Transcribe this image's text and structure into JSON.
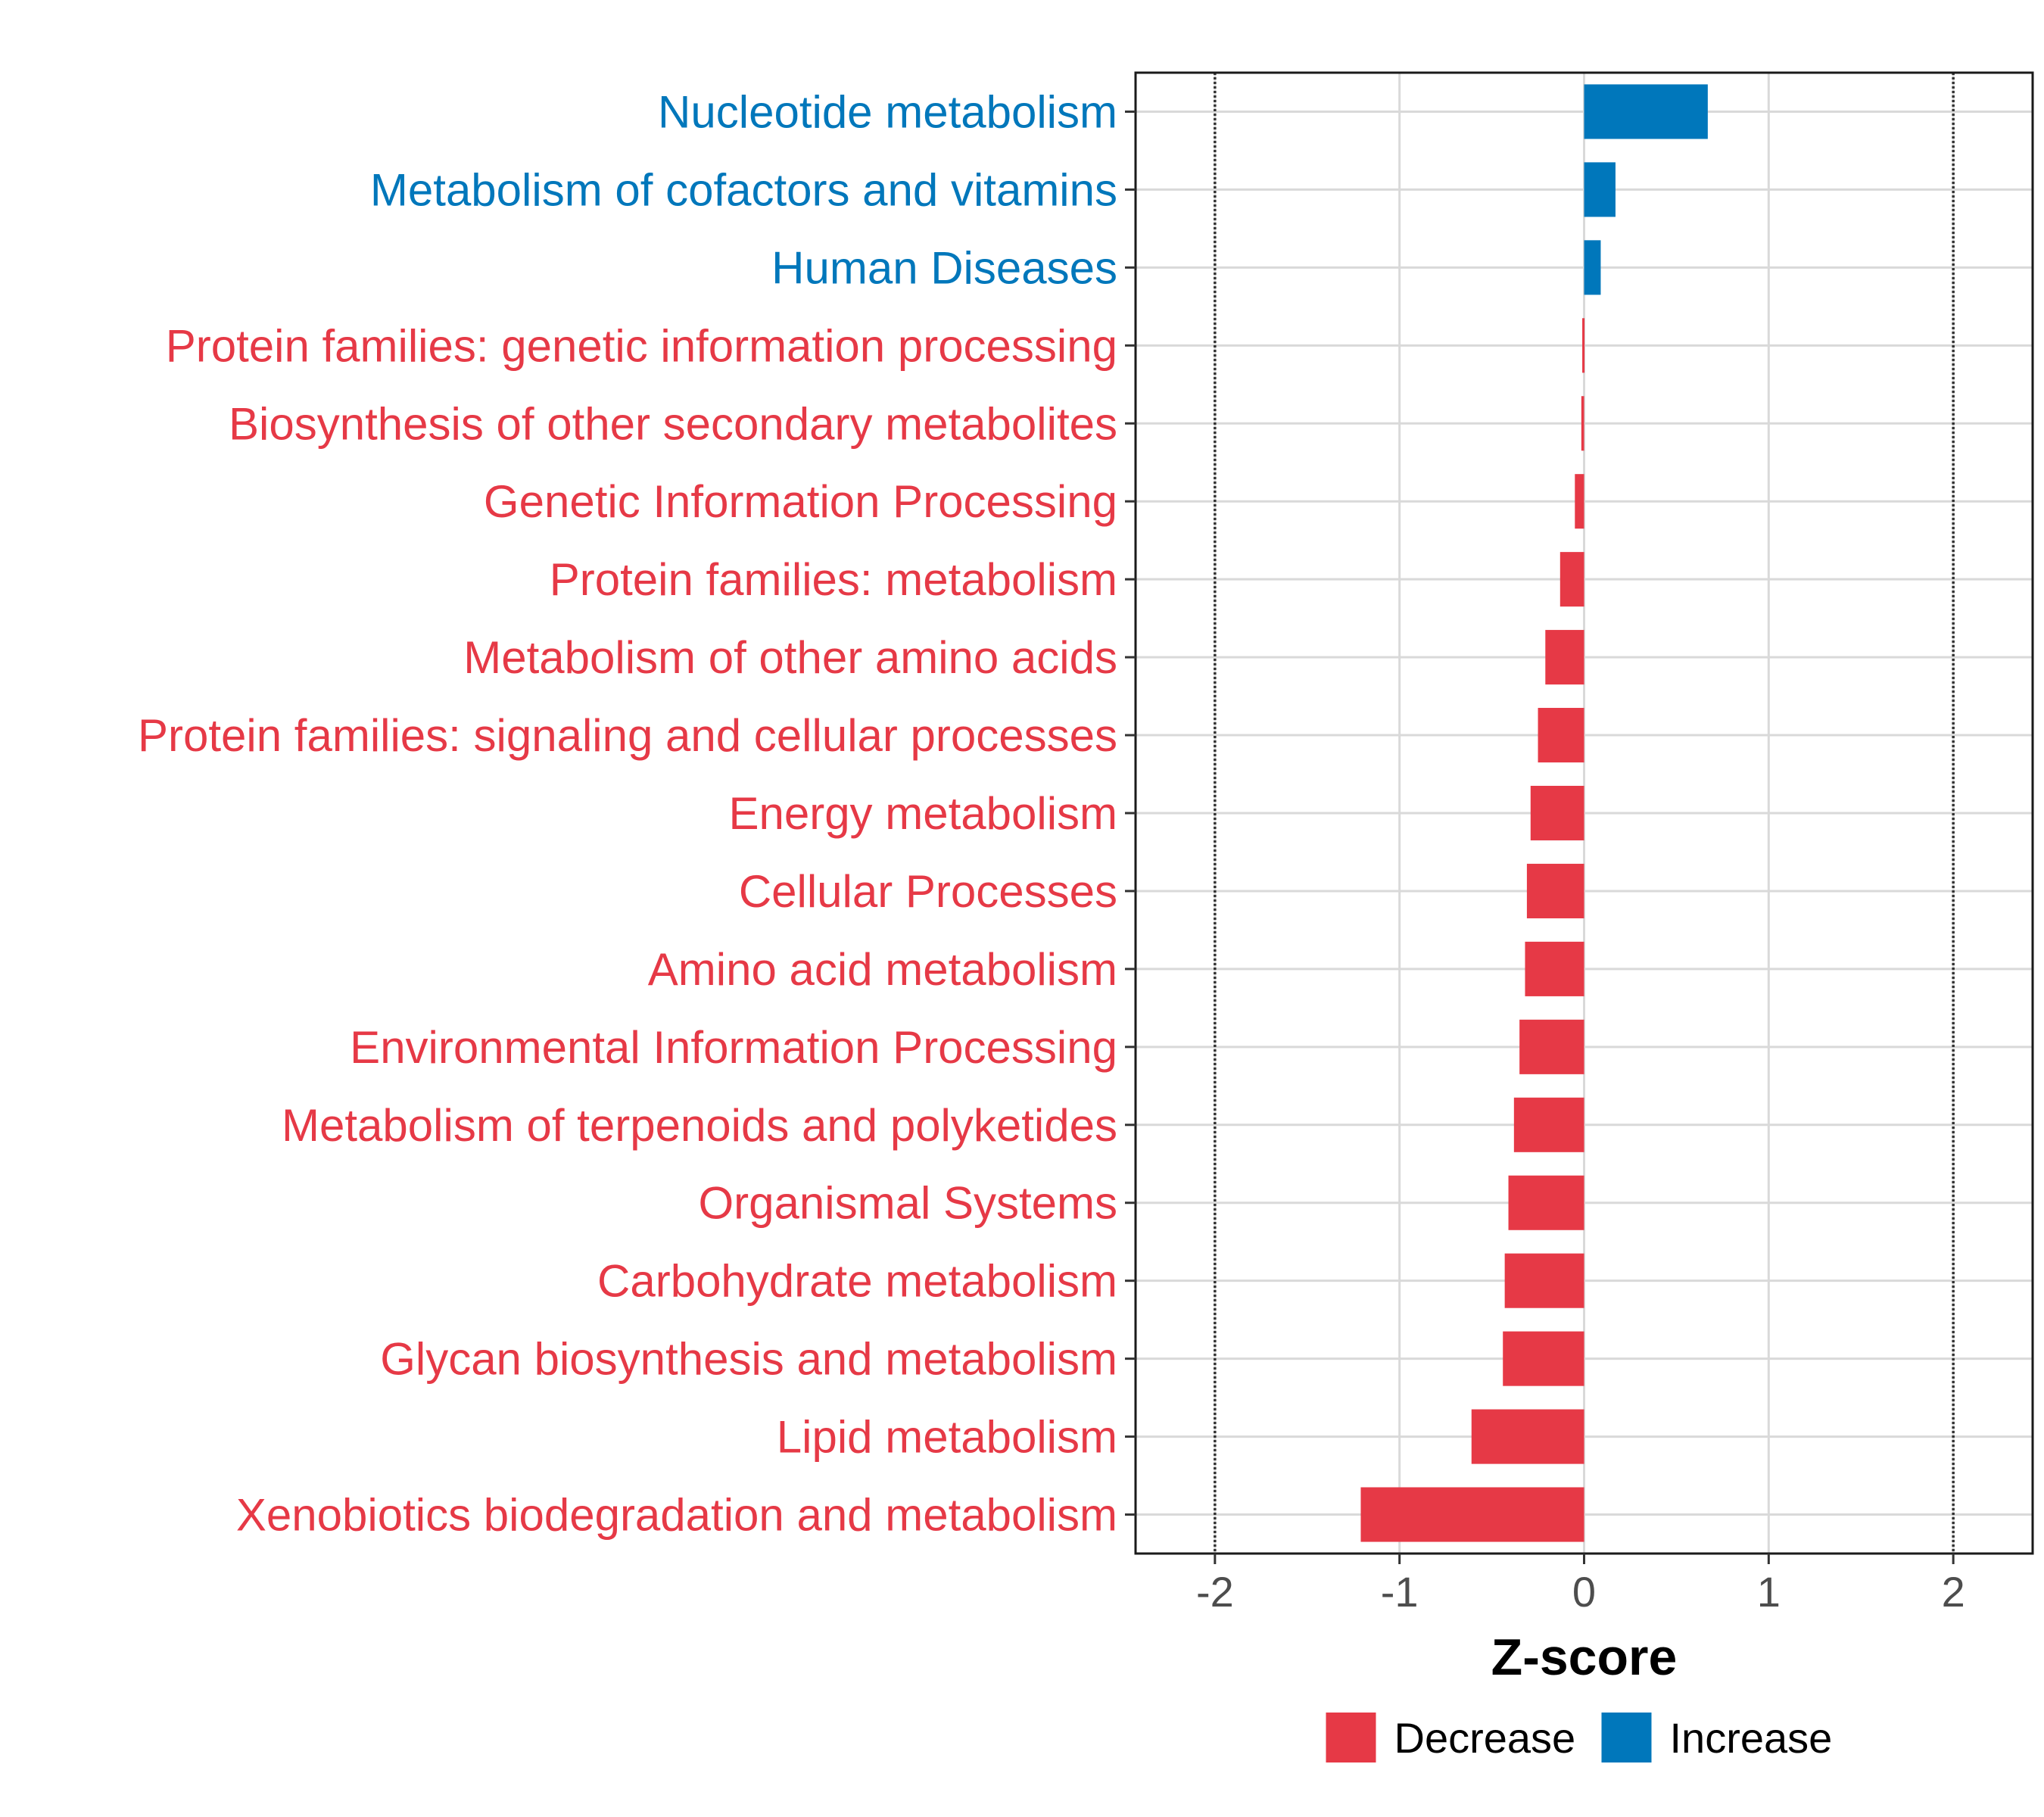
{
  "chart_data": {
    "type": "bar",
    "orientation": "horizontal",
    "title": "",
    "xlabel": "Z-score",
    "ylabel": "",
    "xlim": [
      -2.43,
      2.43
    ],
    "xticks": [
      -2,
      -1,
      0,
      1,
      2
    ],
    "xtick_labels": [
      "-2",
      "-1",
      "0",
      "1",
      "2"
    ],
    "reference_lines": [
      -2,
      2
    ],
    "grid": true,
    "categories": [
      "Nucleotide metabolism",
      "Metabolism of cofactors and vitamins",
      "Human Diseases",
      "Protein families: genetic information processing",
      "Biosynthesis of other secondary metabolites",
      "Genetic Information Processing",
      "Protein families: metabolism",
      "Metabolism of other amino acids",
      "Protein families: signaling and cellular processes",
      "Energy metabolism",
      "Cellular Processes",
      "Amino acid metabolism",
      "Environmental Information Processing",
      "Metabolism of terpenoids and polyketides",
      "Organismal Systems",
      "Carbohydrate metabolism",
      "Glycan biosynthesis and metabolism",
      "Lipid metabolism",
      "Xenobiotics biodegradation and metabolism"
    ],
    "values": [
      0.67,
      0.17,
      0.09,
      -0.01,
      -0.015,
      -0.05,
      -0.13,
      -0.21,
      -0.25,
      -0.29,
      -0.31,
      -0.32,
      -0.35,
      -0.38,
      -0.41,
      -0.43,
      -0.44,
      -0.61,
      -1.21
    ],
    "groups": [
      "Increase",
      "Increase",
      "Increase",
      "Decrease",
      "Decrease",
      "Decrease",
      "Decrease",
      "Decrease",
      "Decrease",
      "Decrease",
      "Decrease",
      "Decrease",
      "Decrease",
      "Decrease",
      "Decrease",
      "Decrease",
      "Decrease",
      "Decrease",
      "Decrease"
    ],
    "legend": {
      "position": "bottom",
      "entries": [
        {
          "label": "Decrease",
          "color": "#e63946"
        },
        {
          "label": "Increase",
          "color": "#0077bb"
        }
      ]
    },
    "colors": {
      "Decrease": "#e63946",
      "Increase": "#0077bb"
    }
  }
}
